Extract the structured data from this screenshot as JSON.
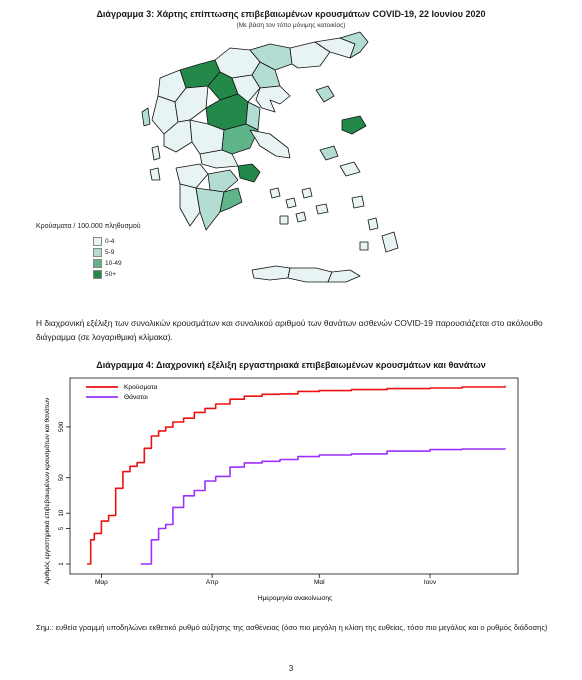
{
  "map": {
    "title": "Διάγραμμα 3: Χάρτης επίπτωσης επιβεβαιωμένων κρουσμάτων COVID-19, 22 Ιουνίου 2020",
    "subtitle": "(Με βάση τον τόπο μόνιμης κατοικίας)",
    "legend_title": "Κρούσματα / 100.000 πληθυσμού",
    "legend": [
      {
        "label": "0-4",
        "color": "#e8f3f3"
      },
      {
        "label": "5-9",
        "color": "#b3dcd3"
      },
      {
        "label": "10-49",
        "color": "#5fb48a"
      },
      {
        "label": "50+",
        "color": "#24884a"
      }
    ]
  },
  "paragraph": "Η διαχρονική εξέλιξη των συνολικών κρουσμάτων και συνολικού αριθμού των θανάτων ασθενών COVID-19 παρουσιάζεται στο ακόλουθο διάγραμμα (σε λογαριθμική κλίμακα).",
  "chart_data": {
    "type": "line",
    "title": "Διάγραμμα 4: Διαχρονική εξέλιξη εργαστηριακά επιβεβαιωμένων κρουσμάτων και θανάτων",
    "xlabel": "Ημερομηνία ανακοίνωσης",
    "ylabel": "Αριθμός εργαστηριακά επιβεβαιωμένων κρουσμάτων και θανάτων",
    "y_scale": "log",
    "y_ticks": [
      1,
      5,
      10,
      50,
      500
    ],
    "x_ticks": [
      "Μαρ",
      "Απρ",
      "Μαϊ",
      "Ιουν"
    ],
    "ylim": [
      1,
      3500
    ],
    "xlim": [
      "2020-02-24",
      "2020-06-22"
    ],
    "grid": false,
    "legend_position": "top-left",
    "series": [
      {
        "name": "Κρούσματα",
        "color": "#ee1111",
        "x": [
          "2020-02-26",
          "2020-02-27",
          "2020-02-28",
          "2020-03-01",
          "2020-03-03",
          "2020-03-05",
          "2020-03-07",
          "2020-03-09",
          "2020-03-11",
          "2020-03-13",
          "2020-03-15",
          "2020-03-17",
          "2020-03-19",
          "2020-03-21",
          "2020-03-24",
          "2020-03-27",
          "2020-03-30",
          "2020-04-02",
          "2020-04-06",
          "2020-04-10",
          "2020-04-15",
          "2020-04-20",
          "2020-04-25",
          "2020-05-01",
          "2020-05-10",
          "2020-05-20",
          "2020-06-01",
          "2020-06-10",
          "2020-06-22"
        ],
        "values": [
          1,
          3,
          4,
          7,
          9,
          31,
          66,
          84,
          99,
          190,
          331,
          418,
          495,
          624,
          743,
          966,
          1156,
          1415,
          1755,
          2011,
          2192,
          2235,
          2506,
          2591,
          2710,
          2840,
          2918,
          3058,
          3227
        ]
      },
      {
        "name": "Θάνατοι",
        "color": "#9b30ff",
        "x": [
          "2020-03-12",
          "2020-03-13",
          "2020-03-15",
          "2020-03-17",
          "2020-03-19",
          "2020-03-21",
          "2020-03-24",
          "2020-03-27",
          "2020-03-30",
          "2020-04-02",
          "2020-04-06",
          "2020-04-10",
          "2020-04-15",
          "2020-04-20",
          "2020-04-25",
          "2020-05-01",
          "2020-05-10",
          "2020-05-20",
          "2020-06-01",
          "2020-06-10",
          "2020-06-22"
        ],
        "values": [
          1,
          1,
          3,
          5,
          6,
          13,
          22,
          28,
          43,
          53,
          81,
          98,
          105,
          114,
          130,
          140,
          147,
          167,
          179,
          184,
          190
        ]
      }
    ]
  },
  "note": "Σημ.: ευθεία γραμμή υποδηλώνει εκθετικό ρυθμό αύξησης της ασθένειας (όσο πιο μεγάλη η κλίση της ευθείας, τόσο πιο μεγάλος και ο ρυθμός διάδοσης)",
  "page_number": "3"
}
